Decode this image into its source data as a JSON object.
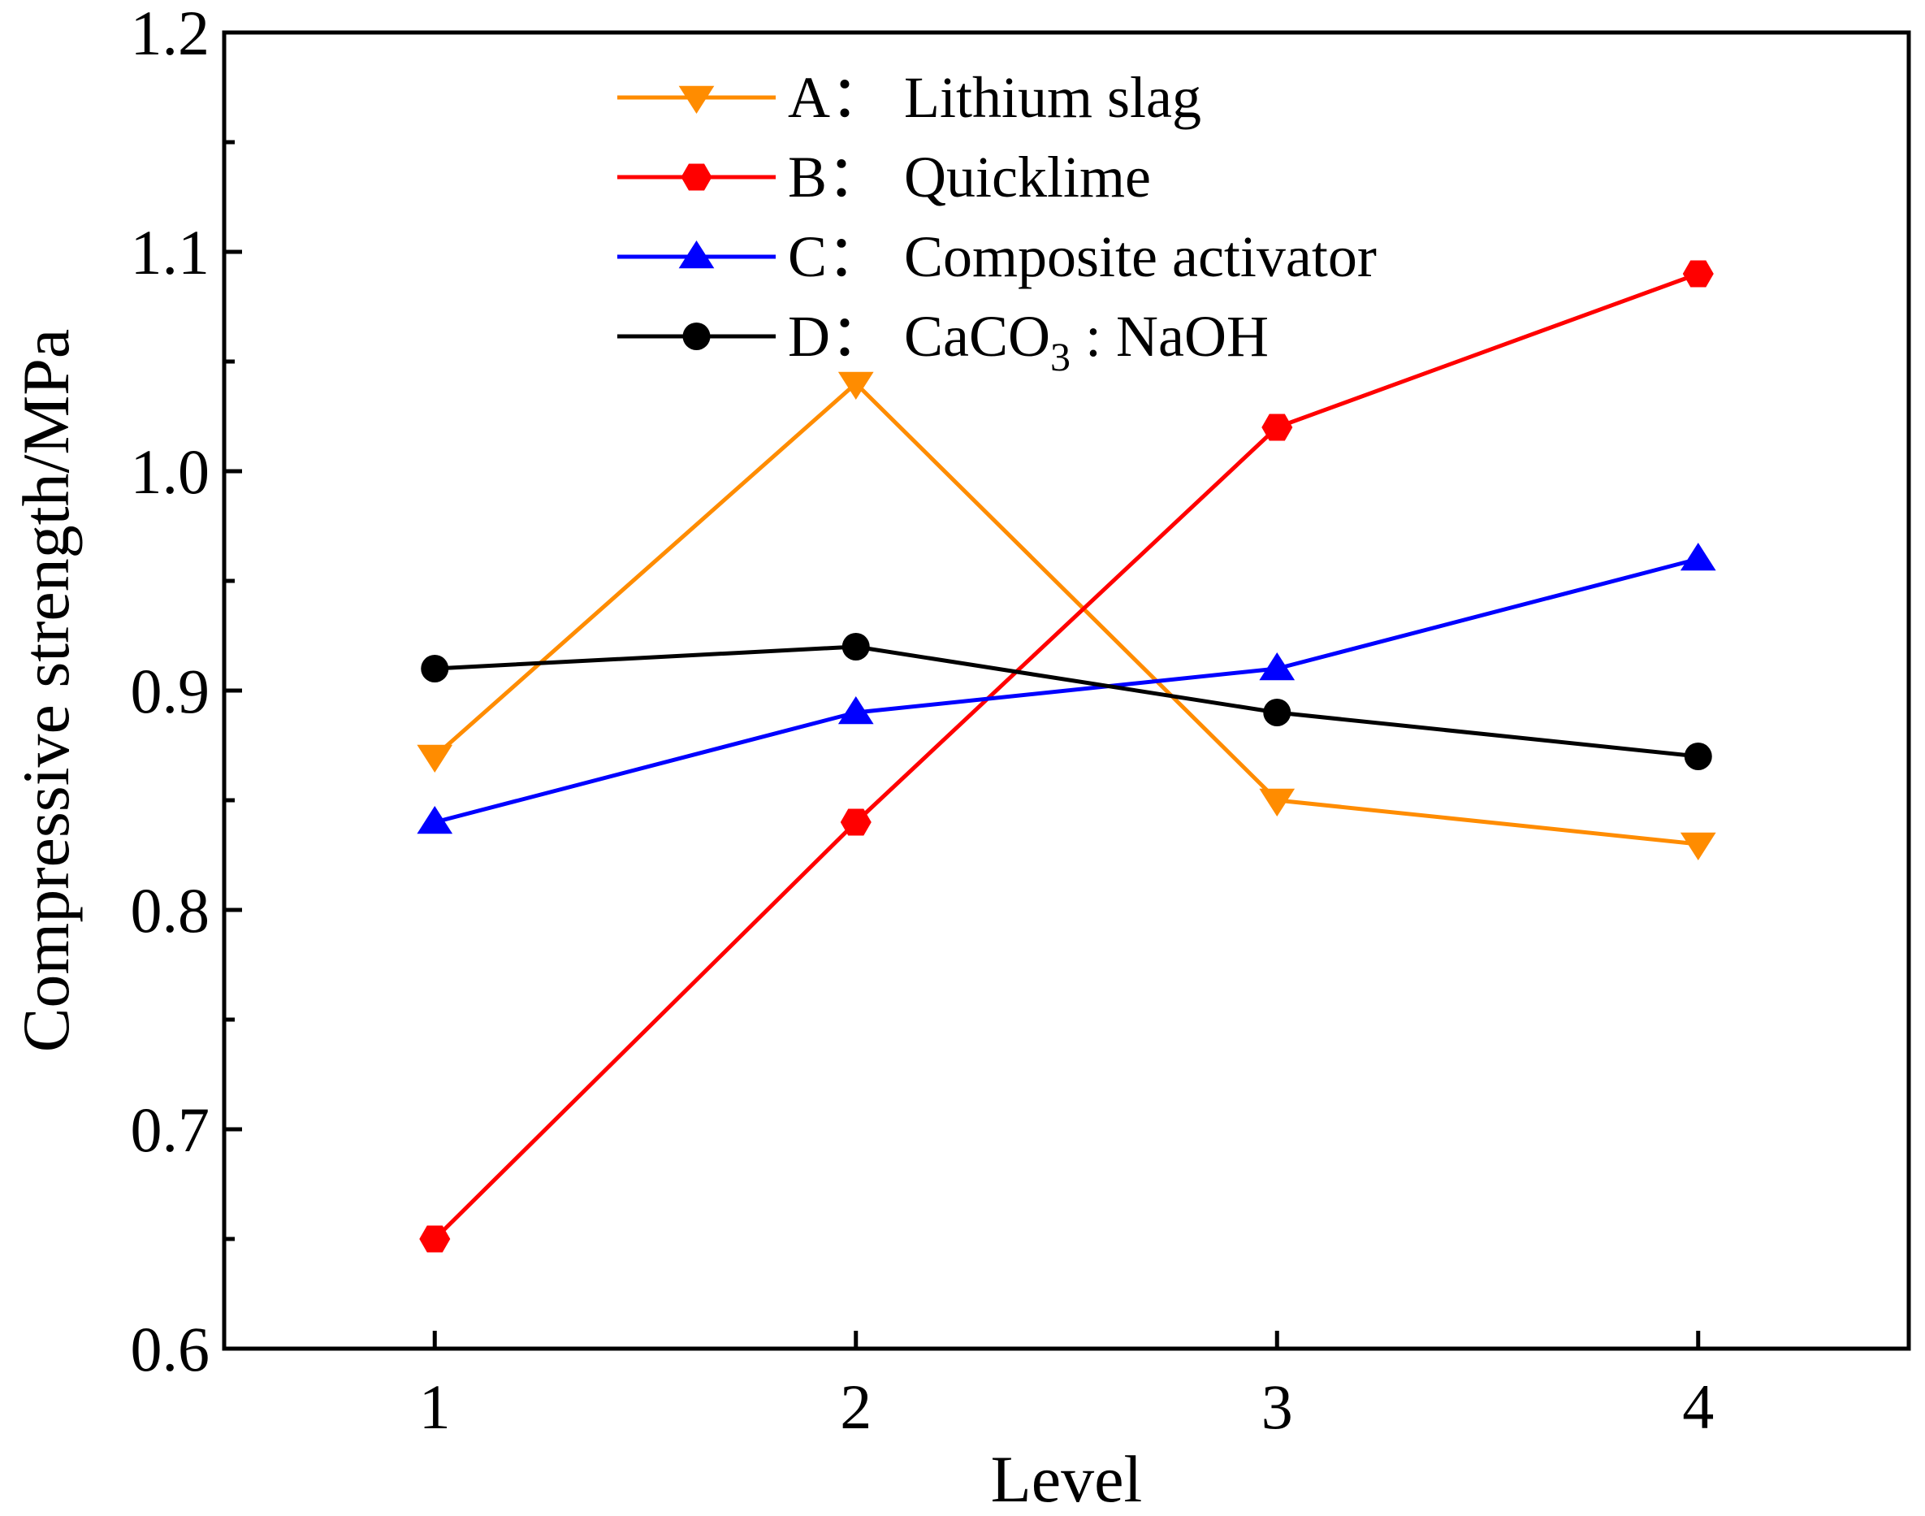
{
  "chart_data": {
    "type": "line",
    "title": "",
    "xlabel": "Level",
    "ylabel": "Compressive strength/MPa",
    "x": [
      1,
      2,
      3,
      4
    ],
    "x_tick_labels": [
      "1",
      "2",
      "3",
      "4"
    ],
    "xlim": [
      0.5,
      4.5
    ],
    "ylim": [
      0.6,
      1.2
    ],
    "y_tick_labels": [
      "0.6",
      "0.7",
      "0.8",
      "0.9",
      "1.0",
      "1.1",
      "1.2"
    ],
    "grid": false,
    "legend_position": "top-center",
    "series": [
      {
        "name": "A： Lithium slag",
        "letter": "A",
        "label": "Lithium slag",
        "color": "#FF8C00",
        "marker": "triangle-down",
        "values": [
          0.87,
          1.04,
          0.85,
          0.83
        ]
      },
      {
        "name": "B： Quicklime",
        "letter": "B",
        "label": "Quicklime",
        "color": "#FF0000",
        "marker": "hexagon",
        "values": [
          0.65,
          0.84,
          1.02,
          1.09
        ]
      },
      {
        "name": "C： Composite activator",
        "letter": "C",
        "label": "Composite activator",
        "color": "#0000FF",
        "marker": "triangle-up",
        "values": [
          0.84,
          0.89,
          0.91,
          0.96
        ]
      },
      {
        "name": "D： CaCO3 : NaOH",
        "letter": "D",
        "label_main": "CaCO",
        "label_sub": "3",
        "label_tail": " : NaOH",
        "color": "#000000",
        "marker": "circle",
        "values": [
          0.91,
          0.92,
          0.89,
          0.87
        ]
      }
    ]
  }
}
